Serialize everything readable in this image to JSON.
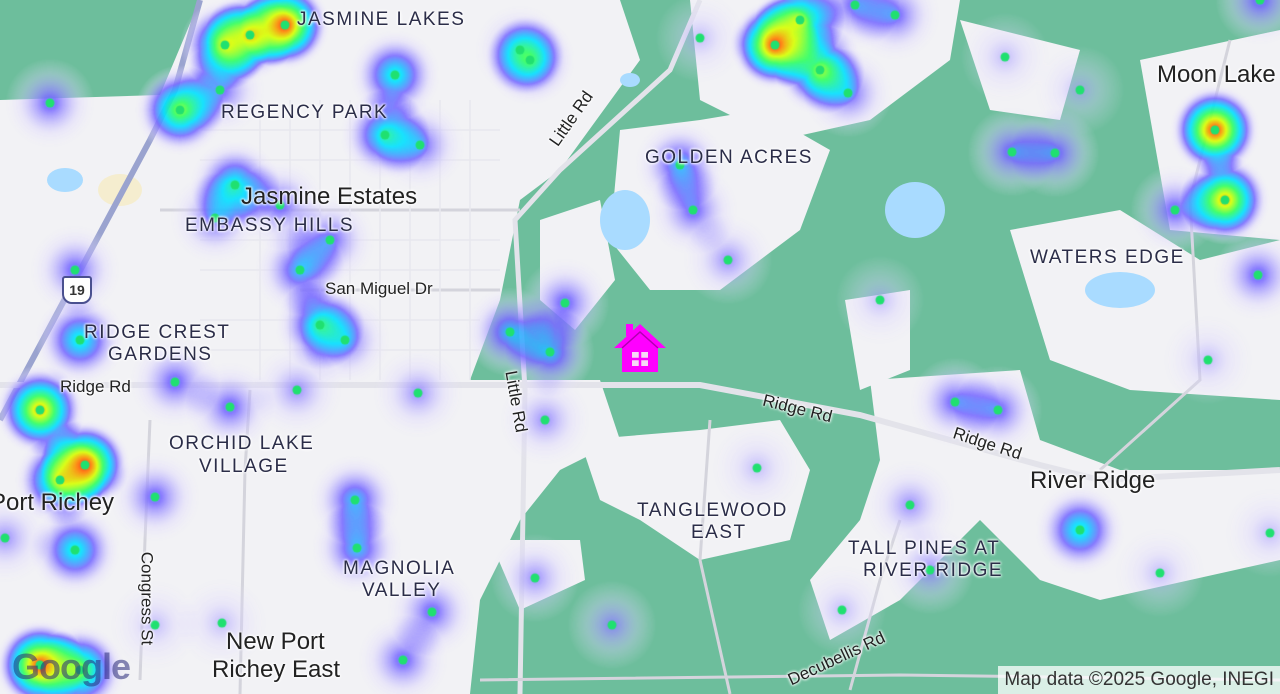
{
  "map": {
    "land_color": "#6dbe9c",
    "urban_color": "#f2f2f5",
    "water_color": "#a9dbff",
    "marker_color": "#ff00ff",
    "point_color": "#20e070",
    "marker_icon": "home-icon",
    "area_labels": [
      "JASMINE LAKES",
      "REGENCY PARK",
      "GOLDEN ACRES",
      "EMBASSY HILLS",
      "WATERS EDGE",
      "RIDGE CREST",
      "GARDENS",
      "ORCHID LAKE",
      "VILLAGE",
      "TANGLEWOOD",
      "EAST",
      "TALL PINES AT",
      "RIVER RIDGE",
      "MAGNOLIA",
      "VALLEY"
    ],
    "city_labels": [
      "Jasmine Estates",
      "Moon Lake",
      "River Ridge",
      "Port Richey",
      "New Port",
      "Richey East"
    ],
    "road_labels": [
      "Little Rd",
      "San Miguel Dr",
      "Ridge Rd",
      "Little Rd",
      "Ridge Rd",
      "Ridge Rd",
      "Congress St",
      "Decubellis Rd"
    ],
    "highway_shield": "19",
    "logo": "Google",
    "attribution": "Map data ©2025 Google, INEGI"
  }
}
